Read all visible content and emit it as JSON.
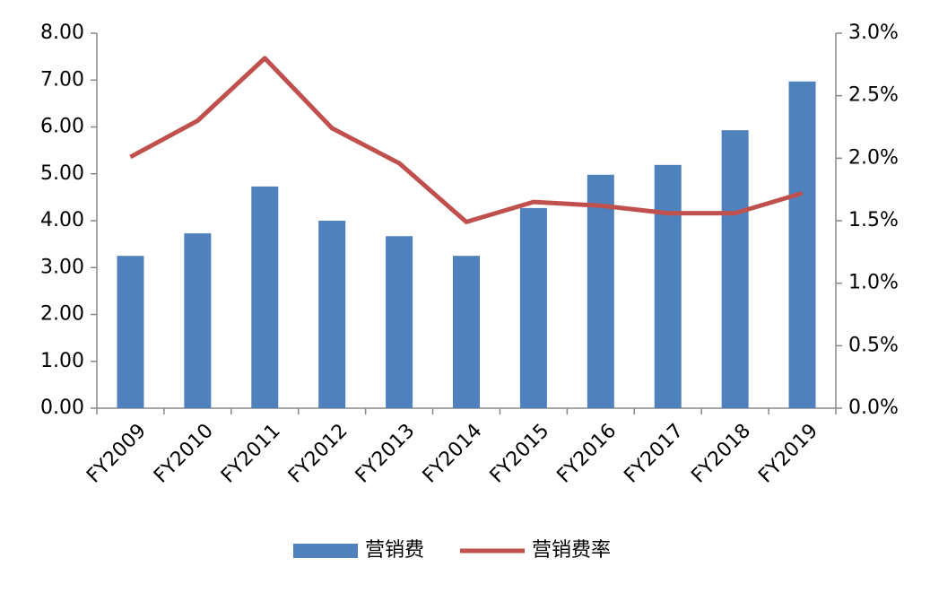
{
  "chart_data": {
    "type": "bar",
    "categories": [
      "FY2009",
      "FY2010",
      "FY2011",
      "FY2012",
      "FY2013",
      "FY2014",
      "FY2015",
      "FY2016",
      "FY2017",
      "FY2018",
      "FY2019"
    ],
    "series": [
      {
        "name": "营销费",
        "type": "bar",
        "color": "#4f81bd",
        "values": [
          3.25,
          3.73,
          4.73,
          4.0,
          3.67,
          3.25,
          4.27,
          4.98,
          5.19,
          5.93,
          6.97
        ]
      },
      {
        "name": "营销费率",
        "type": "line",
        "axis": "y2",
        "color": "#c0504d",
        "values": [
          2.01,
          2.3,
          2.8,
          2.24,
          1.96,
          1.49,
          1.65,
          1.62,
          1.56,
          1.56,
          1.72
        ]
      }
    ],
    "ylim": [
      0,
      8
    ],
    "yticks": [
      {
        "value": 0,
        "label": "0.00"
      },
      {
        "value": 1,
        "label": "1.00"
      },
      {
        "value": 2,
        "label": "2.00"
      },
      {
        "value": 3,
        "label": "3.00"
      },
      {
        "value": 4,
        "label": "4.00"
      },
      {
        "value": 5,
        "label": "5.00"
      },
      {
        "value": 6,
        "label": "6.00"
      },
      {
        "value": 7,
        "label": "7.00"
      },
      {
        "value": 8,
        "label": "8.00"
      }
    ],
    "y2lim": [
      0,
      3
    ],
    "y2ticks": [
      {
        "value": 0,
        "label": "0.0%"
      },
      {
        "value": 0.5,
        "label": "0.5%"
      },
      {
        "value": 1,
        "label": "1.0%"
      },
      {
        "value": 1.5,
        "label": "1.5%"
      },
      {
        "value": 2,
        "label": "2.0%"
      },
      {
        "value": 2.5,
        "label": "2.5%"
      },
      {
        "value": 3,
        "label": "3.0%"
      }
    ],
    "grid": false,
    "legend": "bottom"
  }
}
